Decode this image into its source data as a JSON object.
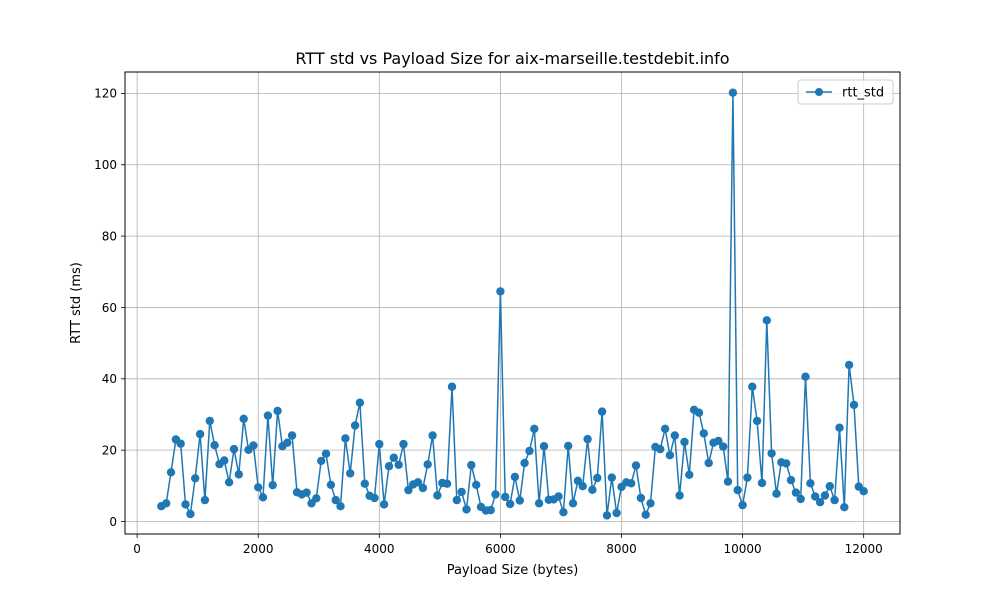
{
  "chart_data": {
    "type": "line",
    "title": "RTT std vs Payload Size for aix-marseille.testdebit.info",
    "xlabel": "Payload Size (bytes)",
    "ylabel": "RTT std (ms)",
    "xlim": [
      -200,
      12600
    ],
    "ylim": [
      -3.5,
      126
    ],
    "xticks": [
      0,
      2000,
      4000,
      6000,
      8000,
      10000,
      12000
    ],
    "yticks": [
      0,
      20,
      40,
      60,
      80,
      100,
      120
    ],
    "grid": true,
    "legend_position": "top-right",
    "series": [
      {
        "name": "rtt_std",
        "color": "#1f77b4",
        "marker": "circle",
        "x": [
          400,
          480,
          560,
          640,
          720,
          800,
          880,
          960,
          1040,
          1120,
          1200,
          1280,
          1360,
          1440,
          1520,
          1600,
          1680,
          1760,
          1840,
          1920,
          2000,
          2080,
          2160,
          2240,
          2320,
          2400,
          2480,
          2560,
          2640,
          2720,
          2800,
          2880,
          2960,
          3040,
          3120,
          3200,
          3280,
          3360,
          3440,
          3520,
          3600,
          3680,
          3760,
          3840,
          3920,
          4000,
          4080,
          4160,
          4240,
          4320,
          4400,
          4480,
          4560,
          4640,
          4720,
          4800,
          4880,
          4960,
          5040,
          5120,
          5200,
          5280,
          5360,
          5440,
          5520,
          5600,
          5680,
          5760,
          5840,
          5920,
          6000,
          6080,
          6160,
          6240,
          6320,
          6400,
          6480,
          6560,
          6640,
          6720,
          6800,
          6880,
          6960,
          7040,
          7120,
          7200,
          7280,
          7360,
          7440,
          7520,
          7600,
          7680,
          7760,
          7840,
          7920,
          8000,
          8080,
          8160,
          8240,
          8320,
          8400,
          8480,
          8560,
          8640,
          8720,
          8800,
          8880,
          8960,
          9040,
          9120,
          9200,
          9280,
          9360,
          9440,
          9520,
          9600,
          9680,
          9760,
          9840,
          9920,
          10000,
          10080,
          10160,
          10240,
          10320,
          10400,
          10480,
          10560,
          10640,
          10720,
          10800,
          10880,
          10960,
          11040,
          11120,
          11200,
          11280,
          11360,
          11440,
          11520,
          11600,
          11680,
          11760,
          11840,
          11920,
          12000
        ],
        "y": [
          4.3,
          5.1,
          13.8,
          23.0,
          21.8,
          4.8,
          2.1,
          12.1,
          24.5,
          6.0,
          28.2,
          21.4,
          16.1,
          17.1,
          11.0,
          20.3,
          13.2,
          28.8,
          20.1,
          21.3,
          9.6,
          6.8,
          29.7,
          10.2,
          31.0,
          21.1,
          22.1,
          24.1,
          8.2,
          7.6,
          8.1,
          5.1,
          6.5,
          17.0,
          19.0,
          10.3,
          6.0,
          4.3,
          23.3,
          13.5,
          26.9,
          33.3,
          10.6,
          7.2,
          6.6,
          21.7,
          4.8,
          15.5,
          17.9,
          15.9,
          21.7,
          8.8,
          10.4,
          11.0,
          9.4,
          16.0,
          24.1,
          7.3,
          10.8,
          10.6,
          37.8,
          6.0,
          8.3,
          3.4,
          15.8,
          10.3,
          4.1,
          3.1,
          3.2,
          7.6,
          64.5,
          6.9,
          4.9,
          12.5,
          5.9,
          16.4,
          19.8,
          26.0,
          5.1,
          21.1,
          6.1,
          6.2,
          7.0,
          2.6,
          21.2,
          5.1,
          11.4,
          9.9,
          23.1,
          8.9,
          12.2,
          30.8,
          1.7,
          12.3,
          2.4,
          9.7,
          11.0,
          10.7,
          15.7,
          6.6,
          1.9,
          5.1,
          20.9,
          20.3,
          26.0,
          18.6,
          24.1,
          7.3,
          22.3,
          13.1,
          31.3,
          30.5,
          24.7,
          16.4,
          22.1,
          22.6,
          21.0,
          11.2,
          120.2,
          8.8,
          4.6,
          12.3,
          37.8,
          28.2,
          10.8,
          56.4,
          19.1,
          7.8,
          16.6,
          16.3,
          11.6,
          8.1,
          6.3,
          40.6,
          10.7,
          7.0,
          5.4,
          7.3,
          9.9,
          6.0,
          26.3,
          4.0,
          43.9,
          32.7,
          9.8,
          8.5
        ]
      }
    ]
  }
}
